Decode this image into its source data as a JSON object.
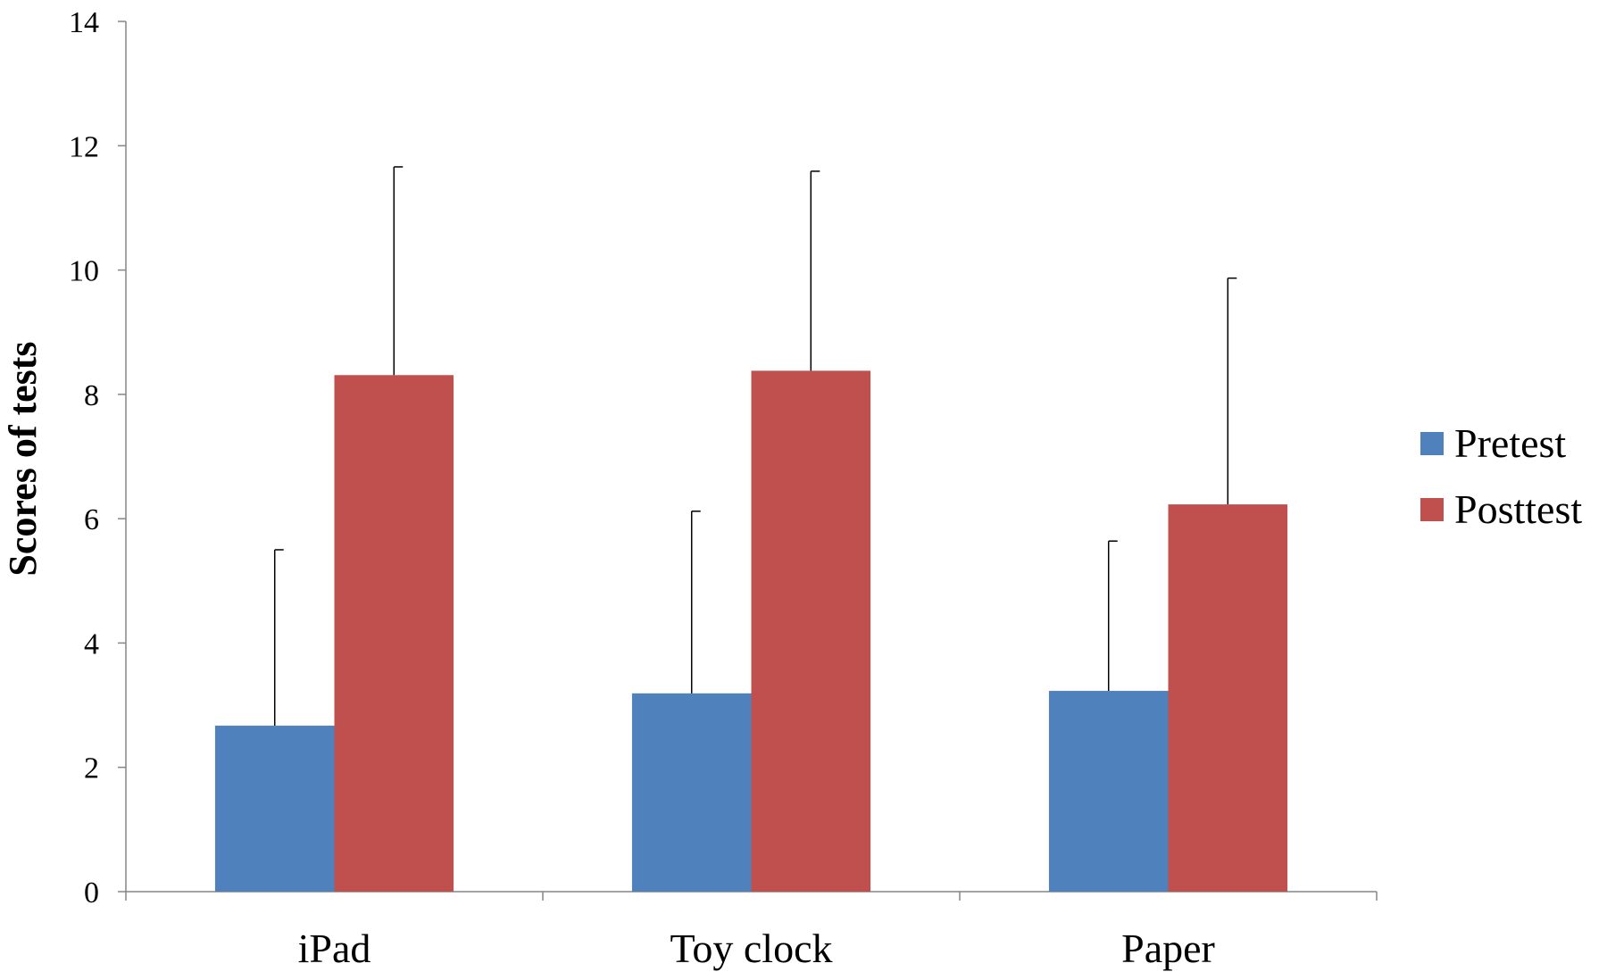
{
  "chart_data": {
    "type": "bar",
    "title": "",
    "xlabel": "",
    "ylabel": "Scores of tests",
    "ylim": [
      0,
      14
    ],
    "yticks": [
      0,
      2,
      4,
      6,
      8,
      10,
      12,
      14
    ],
    "grid": false,
    "legend_position": "right",
    "categories": [
      "iPad",
      "Toy clock",
      "Paper"
    ],
    "series": [
      {
        "name": "Pretest",
        "color": "#4f81bd",
        "values": [
          2.67,
          3.19,
          3.23
        ],
        "error": [
          2.83,
          2.93,
          2.41
        ]
      },
      {
        "name": "Posttest",
        "color": "#c0504d",
        "values": [
          8.31,
          8.38,
          6.23
        ],
        "error": [
          3.35,
          3.21,
          3.64
        ]
      }
    ]
  }
}
